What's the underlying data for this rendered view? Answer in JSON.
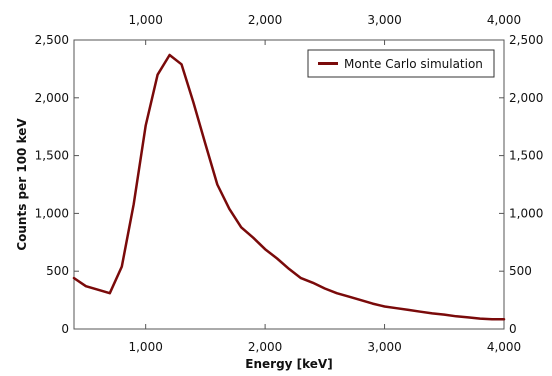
{
  "chart_data": {
    "type": "line",
    "title": "",
    "xlabel": "Energy [keV]",
    "ylabel": "Counts per 100 keV",
    "xlim": [
      400,
      4000
    ],
    "ylim": [
      0,
      2500
    ],
    "x_ticks": [
      1000,
      2000,
      3000,
      4000
    ],
    "x_tick_labels": [
      "1,000",
      "2,000",
      "3,000",
      "4,000"
    ],
    "y_ticks": [
      0,
      500,
      1000,
      1500,
      2000,
      2500
    ],
    "y_tick_labels": [
      "0",
      "500",
      "1,000",
      "1,500",
      "2,000",
      "2,500"
    ],
    "grid": false,
    "legend_position": "top-right",
    "series": [
      {
        "name": "Monte Carlo simulation",
        "color": "#7a0a0a",
        "x": [
          400,
          500,
          600,
          700,
          800,
          900,
          1000,
          1100,
          1200,
          1300,
          1400,
          1500,
          1600,
          1700,
          1800,
          1900,
          2000,
          2100,
          2200,
          2300,
          2400,
          2500,
          2600,
          2700,
          2800,
          2900,
          3000,
          3100,
          3200,
          3300,
          3400,
          3500,
          3600,
          3700,
          3800,
          3900,
          4000
        ],
        "y": [
          440,
          370,
          340,
          310,
          540,
          1080,
          1760,
          2200,
          2370,
          2290,
          1960,
          1600,
          1250,
          1040,
          880,
          790,
          690,
          610,
          520,
          440,
          400,
          350,
          310,
          280,
          250,
          220,
          195,
          180,
          165,
          150,
          135,
          125,
          110,
          100,
          90,
          85,
          85
        ]
      }
    ]
  }
}
